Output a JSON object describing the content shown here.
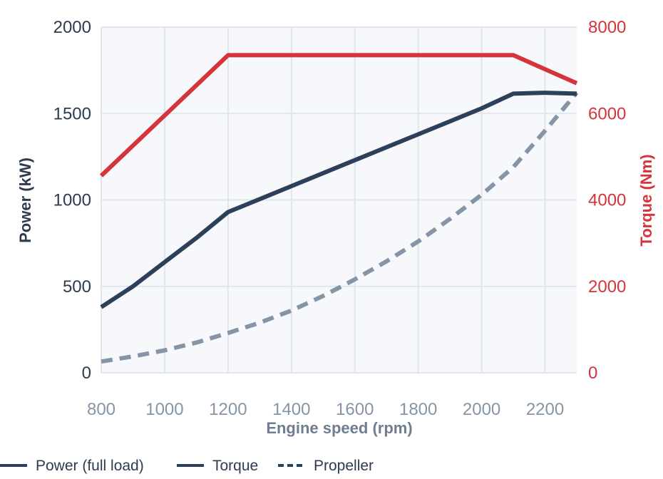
{
  "chart_data": {
    "type": "line",
    "xlabel": "Engine speed (rpm)",
    "ylabel_left": "Power (kW)",
    "ylabel_right": "Torque (Nm)",
    "xlim": [
      800,
      2300
    ],
    "ylim_left": [
      0,
      2000
    ],
    "ylim_right": [
      0,
      8000
    ],
    "x_ticks": [
      "800",
      "1000",
      "1200",
      "1400",
      "1600",
      "1800",
      "2000",
      "2200"
    ],
    "y_left_ticks": [
      "0",
      "500",
      "1000",
      "1500",
      "2000"
    ],
    "y_right_ticks": [
      "0",
      "2000",
      "4000",
      "6000",
      "8000"
    ],
    "grid": true,
    "legend_position": "bottom-left",
    "series": [
      {
        "name": "Power (full load)",
        "axis": "left",
        "style": "solid",
        "color": "#2d4059",
        "x": [
          800,
          900,
          1000,
          1100,
          1200,
          1400,
          1600,
          1800,
          2000,
          2100,
          2200,
          2300
        ],
        "y": [
          380,
          500,
          640,
          780,
          930,
          1080,
          1230,
          1380,
          1530,
          1615,
          1620,
          1615
        ]
      },
      {
        "name": "Torque",
        "axis": "right",
        "style": "solid",
        "color": "#d4343a",
        "x": [
          800,
          1200,
          2100,
          2300
        ],
        "y": [
          4560,
          7350,
          7350,
          6700
        ]
      },
      {
        "name": "Propeller",
        "axis": "left",
        "style": "dashed",
        "color": "#8595a6",
        "x": [
          800,
          900,
          1000,
          1100,
          1200,
          1300,
          1400,
          1500,
          1600,
          1700,
          1800,
          1900,
          2000,
          2100,
          2200,
          2300
        ],
        "y": [
          65,
          95,
          130,
          175,
          230,
          290,
          360,
          445,
          540,
          645,
          760,
          890,
          1030,
          1190,
          1400,
          1620
        ]
      }
    ],
    "legend": [
      {
        "label": "Power (full load)",
        "style": "solid",
        "color": "#2d4059"
      },
      {
        "label": "Torque",
        "style": "solid",
        "color": "#2d4059"
      },
      {
        "label": "Propeller",
        "style": "dashed",
        "color": "#2d4059"
      }
    ],
    "colors": {
      "plot_bg": "#f6f8fc",
      "grid": "#e1e5ec",
      "left_axis": "#2d3b4e",
      "right_axis": "#d4343a",
      "x_axis": "#8595a6",
      "x_title": "#6e7e90"
    }
  }
}
